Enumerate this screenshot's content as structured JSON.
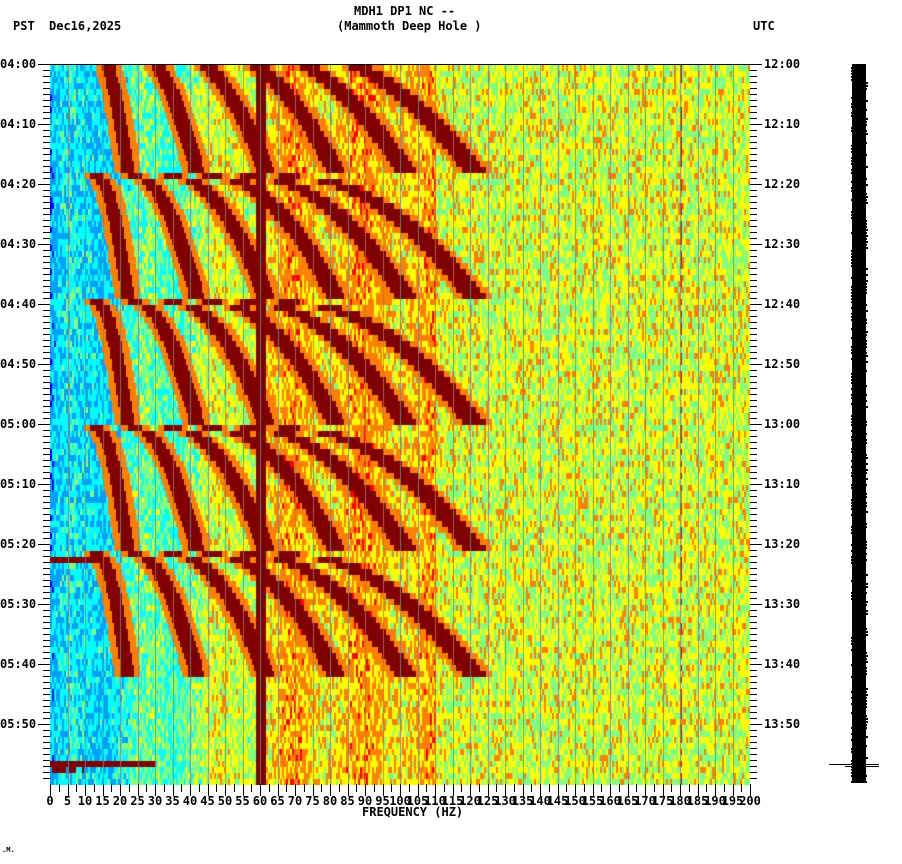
{
  "header": {
    "station": "MDH1 DP1 NC --",
    "location": "(Mammoth Deep Hole )",
    "left_tz": "PST",
    "date": "Dec16,2025",
    "right_tz": "UTC"
  },
  "footer_mark": ".M.",
  "chart_data": {
    "type": "heatmap",
    "title": "MDH1 DP1 NC -- (Mammoth Deep Hole )",
    "subtitle": "Dec16,2025",
    "xlabel": "FREQUENCY (HZ)",
    "ylabel_left": "PST",
    "ylabel_right": "UTC",
    "xlim": [
      0,
      200
    ],
    "x_ticks": [
      "0",
      "5",
      "10",
      "15",
      "20",
      "25",
      "30",
      "35",
      "40",
      "45",
      "50",
      "55",
      "60",
      "65",
      "70",
      "75",
      "80",
      "85",
      "90",
      "95",
      "100",
      "105",
      "110",
      "115",
      "120",
      "125",
      "130",
      "135",
      "140",
      "145",
      "150",
      "155",
      "160",
      "165",
      "170",
      "175",
      "180",
      "185",
      "190",
      "195",
      "200"
    ],
    "y_ticks_left": [
      "04:00",
      "04:10",
      "04:20",
      "04:30",
      "04:40",
      "04:50",
      "05:00",
      "05:10",
      "05:20",
      "05:30",
      "05:40",
      "05:50"
    ],
    "y_ticks_right": [
      "12:00",
      "12:10",
      "12:20",
      "12:30",
      "12:40",
      "12:50",
      "13:00",
      "13:10",
      "13:20",
      "13:30",
      "13:40",
      "13:50"
    ],
    "time_range_pst": [
      "04:00",
      "06:00"
    ],
    "colormap": [
      "#0000ff",
      "#00a0ff",
      "#00ffff",
      "#80ff80",
      "#ffff00",
      "#ff8000",
      "#ff0000",
      "#800000"
    ],
    "features": {
      "constant_line_hz": 60,
      "gliding_harmonics_period_min": 20,
      "glide_onsets_pst": [
        "04:18",
        "04:39",
        "05:00",
        "05:21",
        "05:42"
      ],
      "broadband_bursts_pst": [
        "05:22",
        "05:57"
      ],
      "faint_line_hz": 180
    },
    "grid": true
  }
}
